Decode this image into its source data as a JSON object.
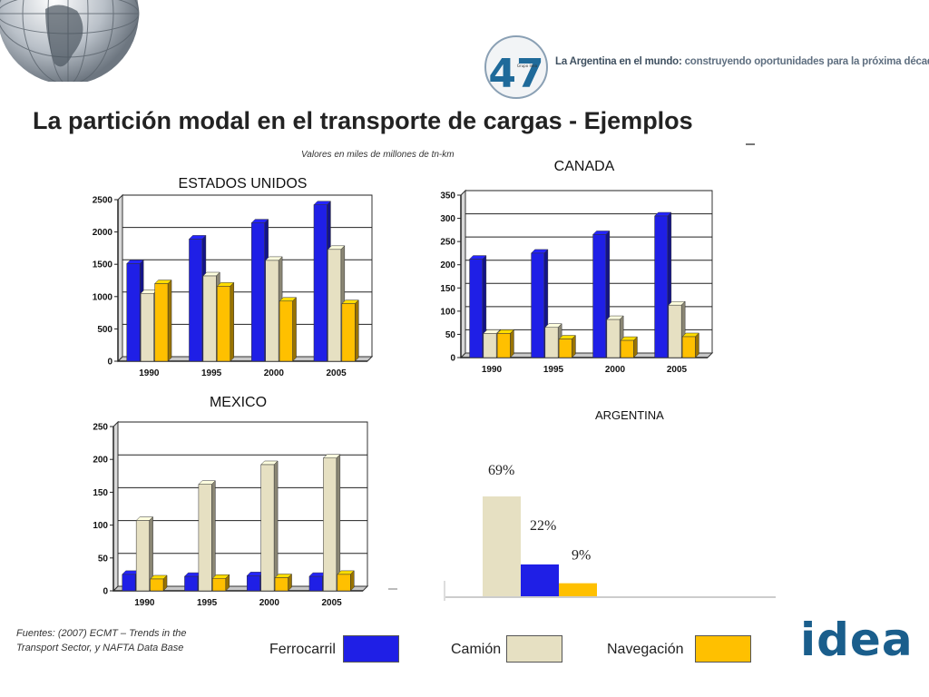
{
  "header": {
    "logo_text": "47",
    "logo_small": "Grupo Idea",
    "tagline_strong": "La Argentina en el mundo:",
    "tagline_rest": " construyendo oportunidades para la próxima década"
  },
  "page": {
    "title": "La partición modal en el transporte de cargas - Ejemplos",
    "subtitle": "Valores en miles de millones de tn-km"
  },
  "colors": {
    "ferrocarril": "#1f1fe6",
    "camion": "#e6e0c2",
    "navegacion": "#ffc000",
    "brand": "#1a5e8c"
  },
  "chart_data": [
    {
      "id": "us",
      "type": "bar",
      "title": "ESTADOS UNIDOS",
      "categories": [
        "1990",
        "1995",
        "2000",
        "2005"
      ],
      "ylim": [
        0,
        2500
      ],
      "yticks": [
        0,
        500,
        1000,
        1500,
        2000,
        2500
      ],
      "grid": true,
      "series": [
        {
          "name": "Ferrocarril",
          "values": [
            1510,
            1890,
            2140,
            2420
          ]
        },
        {
          "name": "Camión",
          "values": [
            1050,
            1320,
            1560,
            1730
          ]
        },
        {
          "name": "Navegación",
          "values": [
            1200,
            1160,
            930,
            890
          ]
        }
      ]
    },
    {
      "id": "canada",
      "type": "bar",
      "title": "CANADA",
      "categories": [
        "1990",
        "1995",
        "2000",
        "2005"
      ],
      "ylim": [
        0,
        350
      ],
      "yticks": [
        0,
        50,
        100,
        150,
        200,
        250,
        300,
        350
      ],
      "grid": true,
      "series": [
        {
          "name": "Ferrocarril",
          "values": [
            212,
            225,
            265,
            305
          ]
        },
        {
          "name": "Camión",
          "values": [
            52,
            65,
            82,
            113
          ]
        },
        {
          "name": "Navegación",
          "values": [
            52,
            40,
            37,
            45
          ]
        }
      ]
    },
    {
      "id": "mexico",
      "type": "bar",
      "title": "MEXICO",
      "categories": [
        "1990",
        "1995",
        "2000",
        "2005"
      ],
      "ylim": [
        0,
        250
      ],
      "yticks": [
        0,
        50,
        100,
        150,
        200,
        250
      ],
      "grid": true,
      "series": [
        {
          "name": "Ferrocarril",
          "values": [
            25,
            22,
            23,
            22
          ]
        },
        {
          "name": "Camión",
          "values": [
            107,
            162,
            192,
            202
          ]
        },
        {
          "name": "Navegación",
          "values": [
            18,
            19,
            20,
            25
          ]
        }
      ]
    },
    {
      "id": "argentina",
      "type": "bar",
      "title": "ARGENTINA",
      "categories": [
        "Camión",
        "Ferrocarril",
        "Navegación"
      ],
      "values": [
        69,
        22,
        9
      ],
      "labels": [
        "69%",
        "22%",
        "9%"
      ],
      "unit": "%"
    }
  ],
  "legend": [
    {
      "label": "Ferrocarril",
      "color_key": "ferrocarril"
    },
    {
      "label": "Camión",
      "color_key": "camion"
    },
    {
      "label": "Navegación",
      "color_key": "navegacion"
    }
  ],
  "sources": {
    "line1": "Fuentes: (2007) ECMT – Trends in the",
    "line2": "Transport Sector, y NAFTA Data Base"
  },
  "brand": {
    "logo_text": "idea"
  }
}
